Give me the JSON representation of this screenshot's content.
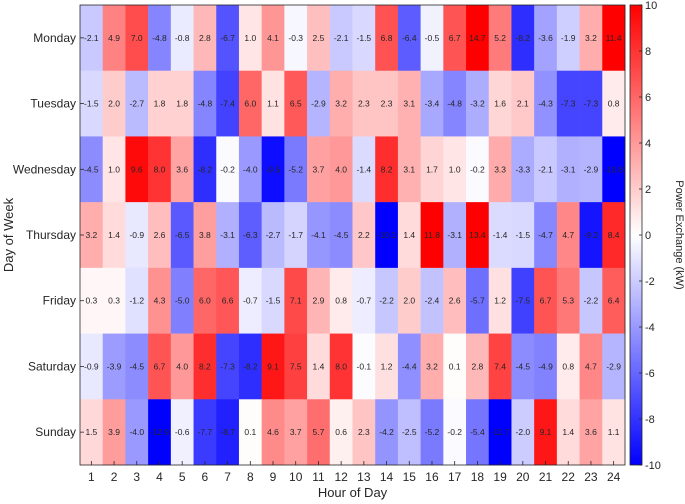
{
  "chart_data": {
    "type": "heatmap",
    "title": "",
    "xlabel": "Hour of Day",
    "ylabel": "Day of Week",
    "colorbar_label": "Power Exchange (kW)",
    "colorbar_range": [
      -10,
      10
    ],
    "colorbar_ticks": [
      "-10",
      "-8",
      "-6",
      "-4",
      "-2",
      "0",
      "2",
      "4",
      "6",
      "8",
      "10"
    ],
    "colormap": {
      "low": "#0000ff",
      "mid": "#ffffff",
      "high": "#ff0000"
    },
    "x_categories": [
      "1",
      "2",
      "3",
      "4",
      "5",
      "6",
      "7",
      "8",
      "9",
      "10",
      "11",
      "12",
      "13",
      "14",
      "15",
      "16",
      "17",
      "18",
      "19",
      "20",
      "21",
      "22",
      "23",
      "24"
    ],
    "y_categories": [
      "Monday",
      "Tuesday",
      "Wednesday",
      "Thursday",
      "Friday",
      "Saturday",
      "Sunday"
    ],
    "values": [
      [
        -2.1,
        4.9,
        7.0,
        -4.8,
        -0.8,
        2.8,
        -6.7,
        1.0,
        4.1,
        -0.3,
        2.5,
        -2.1,
        -1.5,
        6.8,
        -6.4,
        -0.5,
        6.7,
        14.7,
        5.2,
        -8.2,
        -3.6,
        -1.9,
        3.2,
        11.4
      ],
      [
        -1.5,
        2.0,
        -2.7,
        1.8,
        1.8,
        -4.8,
        -7.4,
        6.0,
        1.1,
        6.5,
        -2.9,
        3.2,
        2.3,
        2.3,
        3.1,
        -3.4,
        -4.8,
        -3.2,
        1.6,
        2.1,
        -4.3,
        -7.3,
        -7.3,
        0.8
      ],
      [
        -4.5,
        1.0,
        9.6,
        8.0,
        3.6,
        -8.2,
        -0.2,
        -4.0,
        -9.5,
        -5.2,
        3.7,
        4.0,
        -1.4,
        8.2,
        3.1,
        1.7,
        1.0,
        -0.2,
        3.3,
        -3.3,
        -2.1,
        -3.1,
        -2.9,
        -10.8
      ],
      [
        3.2,
        1.4,
        -0.9,
        2.6,
        -6.5,
        3.8,
        -3.1,
        -6.3,
        -2.7,
        -1.7,
        -4.1,
        -4.5,
        2.2,
        -10.1,
        1.4,
        11.8,
        -3.1,
        13.4,
        -1.4,
        -1.5,
        -4.7,
        4.7,
        -9.2,
        8.4
      ],
      [
        0.3,
        0.3,
        -1.2,
        4.3,
        -5.0,
        6.0,
        6.6,
        -0.7,
        -1.5,
        7.1,
        2.9,
        0.8,
        -0.7,
        -2.2,
        2.0,
        -2.4,
        2.6,
        -5.7,
        1.2,
        -7.5,
        6.7,
        5.3,
        -2.2,
        6.4
      ],
      [
        -0.9,
        -3.9,
        -4.5,
        6.7,
        4.0,
        8.2,
        -7.3,
        -8.2,
        9.1,
        7.5,
        1.4,
        8.0,
        -0.1,
        1.2,
        -4.4,
        3.2,
        0.1,
        2.8,
        7.4,
        -4.5,
        -4.9,
        0.8,
        4.7,
        -2.9
      ],
      [
        1.5,
        3.9,
        -4.0,
        -12.9,
        -0.6,
        -7.7,
        -8.7,
        0.1,
        4.6,
        3.7,
        5.7,
        0.6,
        2.3,
        -4.2,
        -2.5,
        -5.2,
        -0.2,
        -5.4,
        -11.7,
        -2.0,
        9.1,
        1.4,
        3.6,
        1.1
      ]
    ]
  }
}
